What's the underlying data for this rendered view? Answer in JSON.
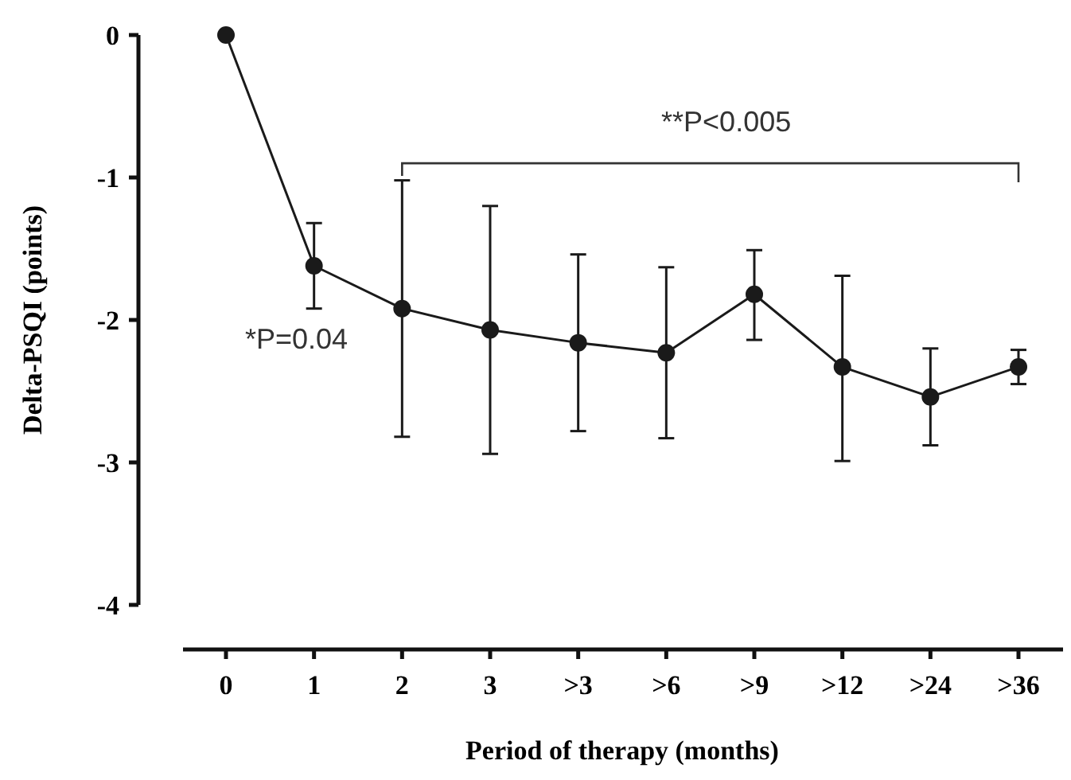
{
  "chart_data": {
    "type": "line",
    "xlabel": "Period of therapy (months)",
    "ylabel": "Delta-PSQI (points)",
    "categories": [
      "0",
      "1",
      "2",
      "3",
      ">3",
      ">6",
      ">9",
      ">12",
      ">24",
      ">36"
    ],
    "series": [
      {
        "color": "#1a1a1a",
        "values": [
          0,
          -1.62,
          -1.92,
          -2.07,
          -2.16,
          -2.23,
          -1.82,
          -2.33,
          -2.54,
          -2.33
        ],
        "errors": [
          null,
          [
            -1.92,
            -1.32
          ],
          [
            -2.82,
            -1.02
          ],
          [
            -2.94,
            -1.2
          ],
          [
            -2.78,
            -1.54
          ],
          [
            -2.83,
            -1.63
          ],
          [
            -2.14,
            -1.51
          ],
          [
            -2.99,
            -1.69
          ],
          [
            -2.88,
            -2.2
          ],
          [
            -2.45,
            -2.21
          ]
        ]
      }
    ],
    "ylim": [
      -4,
      0
    ],
    "yticks": [
      0,
      -1,
      -2,
      -3,
      -4
    ],
    "marker": "circle",
    "line_style": "solid",
    "annotations": [
      "*P=0.04",
      "**P<0.005"
    ]
  }
}
